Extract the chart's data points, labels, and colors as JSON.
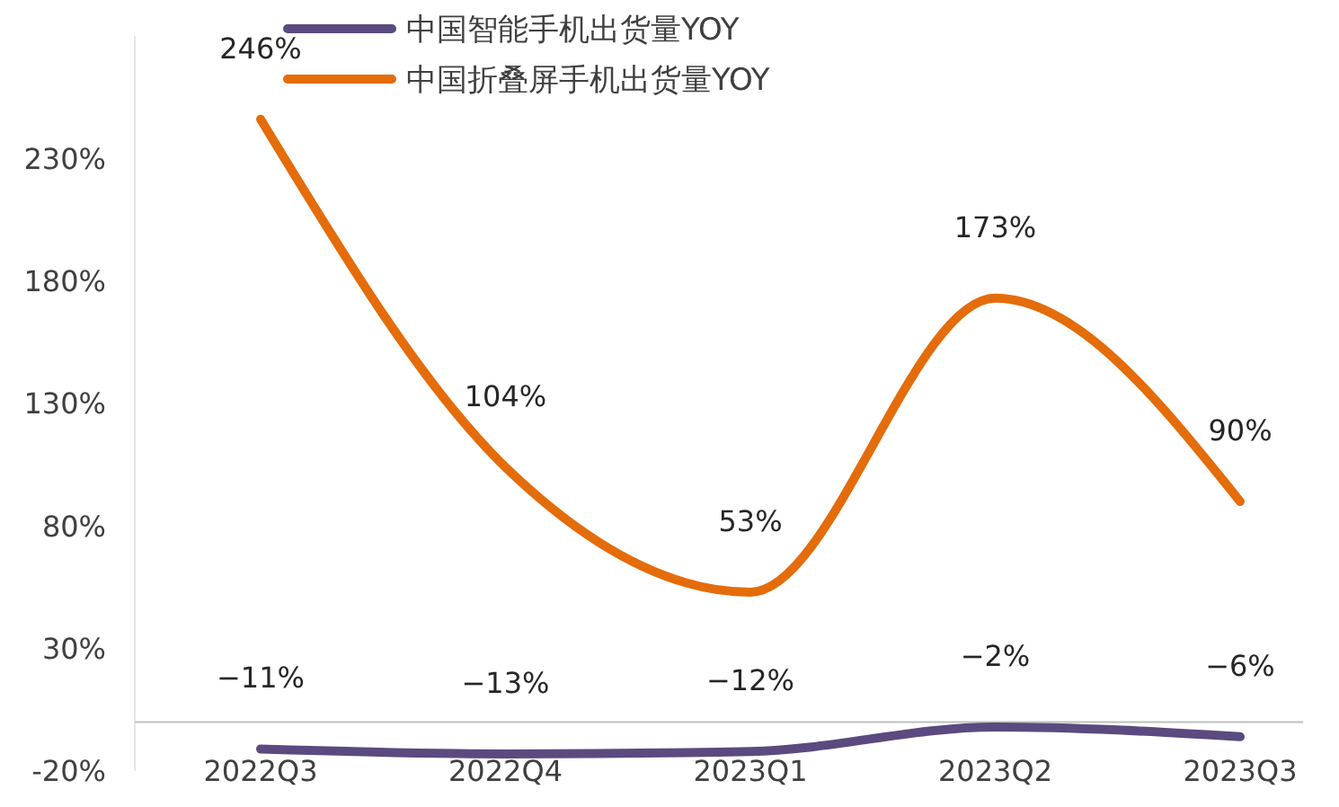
{
  "chart_data": {
    "type": "line",
    "categories": [
      "2022Q3",
      "2022Q4",
      "2023Q1",
      "2023Q2",
      "2023Q3"
    ],
    "series": [
      {
        "name": "中国智能手机出货量YOY",
        "color": "#5b4a7f",
        "values": [
          -11,
          -13,
          -12,
          -2,
          -6
        ],
        "value_labels": [
          "−11%",
          "−13%",
          "−12%",
          "−2%",
          "−6%"
        ]
      },
      {
        "name": "中国折叠屏手机出货量YOY",
        "color": "#e46c0a",
        "values": [
          246,
          104,
          53,
          173,
          90
        ],
        "value_labels": [
          "246%",
          "104%",
          "53%",
          "173%",
          "90%"
        ]
      }
    ],
    "ylim": [
      -20,
      280
    ],
    "yticks": [
      {
        "value": -20,
        "label": "-20%"
      },
      {
        "value": 30,
        "label": "30%"
      },
      {
        "value": 80,
        "label": "80%"
      },
      {
        "value": 130,
        "label": "130%"
      },
      {
        "value": 180,
        "label": "180%"
      },
      {
        "value": 230,
        "label": "230%"
      }
    ],
    "legend": "top",
    "grid": false,
    "marker": "none",
    "line_style": "solid"
  }
}
